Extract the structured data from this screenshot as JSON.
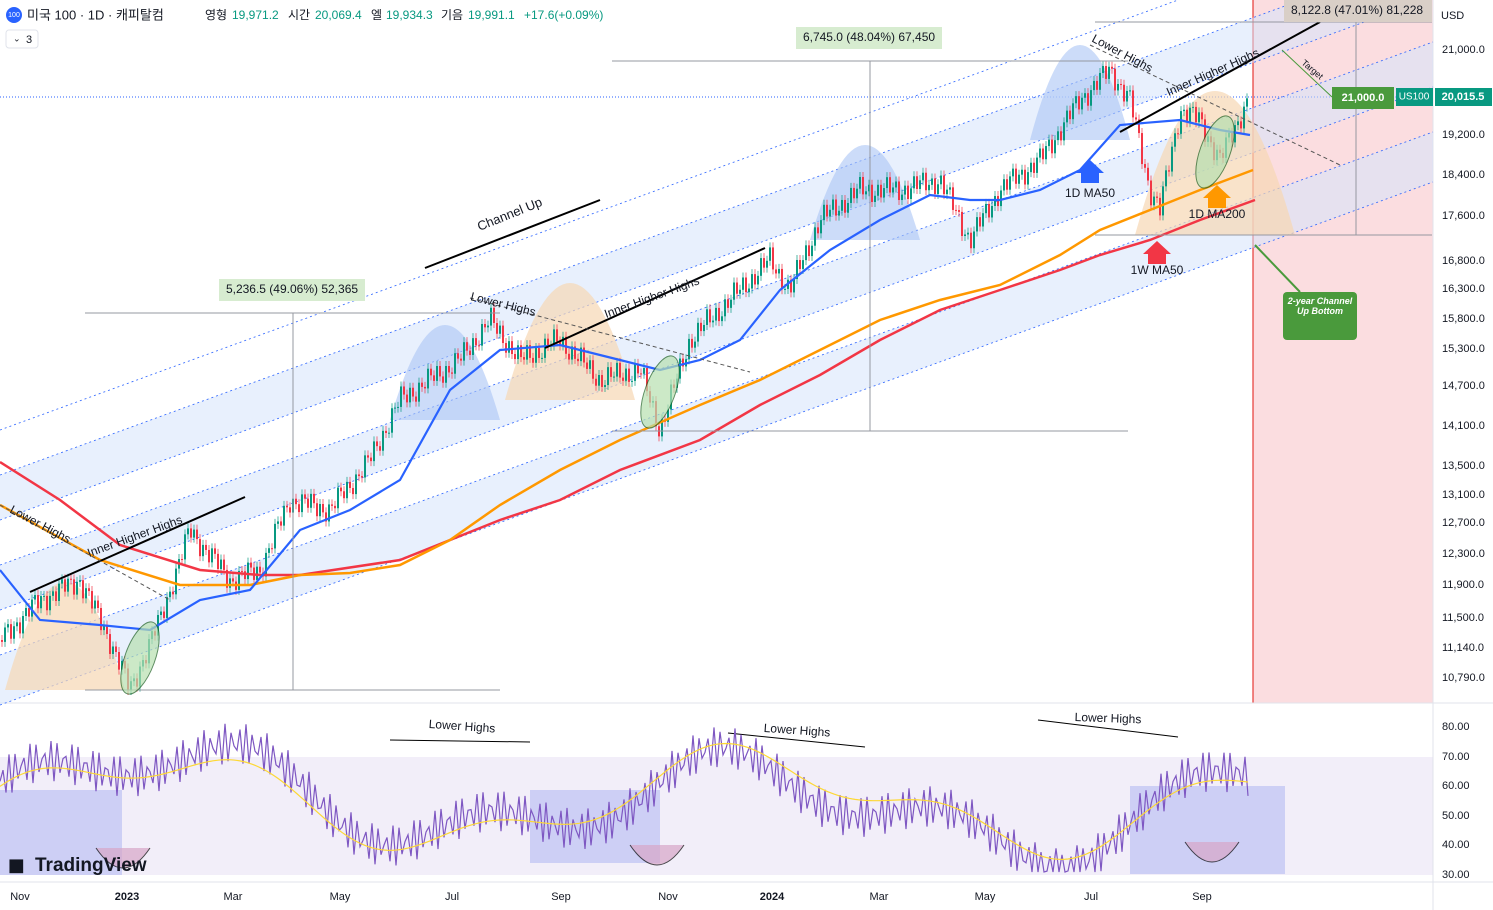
{
  "header": {
    "badge": "100",
    "title": "미국 100 · 1D · 캐피탈컴",
    "open_label": "영형",
    "open": "19,971.2",
    "high_label": "시간",
    "high": "20,069.4",
    "low_label": "엘",
    "low": "19,934.3",
    "close_label": "기음",
    "close": "19,991.1",
    "change": "+17.6(+0.09%)",
    "indicator_count": "3"
  },
  "price_axis": {
    "currency": "USD",
    "ticks": [
      "21,000.0",
      "19,200.0",
      "18,400.0",
      "17,600.0",
      "16,800.0",
      "16,300.0",
      "15,800.0",
      "15,300.0",
      "14,700.0",
      "14,100.0",
      "13,500.0",
      "13,100.0",
      "12,700.0",
      "12,300.0",
      "11,900.0",
      "11,500.0",
      "11,140.0",
      "10,790.0"
    ]
  },
  "price_labels": {
    "target": "21,000.0",
    "symbol": "US100",
    "last": "20,015.5"
  },
  "rsi_axis": {
    "ticks": [
      "80.00",
      "70.00",
      "60.00",
      "50.00",
      "40.00",
      "30.00"
    ]
  },
  "time_axis": {
    "ticks": [
      "Nov",
      "2023",
      "Mar",
      "May",
      "Jul",
      "Sep",
      "Nov",
      "2024",
      "Mar",
      "May",
      "Jul",
      "Sep"
    ]
  },
  "annotations": {
    "channel_up": "Channel Up",
    "lower_highs": [
      "Lower Highs",
      "Lower Highs",
      "Lower Highs",
      "Lower Highs",
      "Lower Highs",
      "Lower Highs"
    ],
    "inner_higher_highs": [
      "Inner Higher Highs",
      "Inner Higher Highs",
      "Inner Higher Highs"
    ],
    "measure": [
      "5,236.5 (49.06%) 52,365",
      "6,745.0 (48.04%) 67,450",
      "8,122.8 (47.01%) 81,228"
    ],
    "target": "Target",
    "ma50_1d": "1D MA50",
    "ma200_1d": "1D MA200",
    "ma50_1w": "1W MA50",
    "channel_bottom": "2-year Channel Up Bottom"
  },
  "brand": "TradingView"
}
